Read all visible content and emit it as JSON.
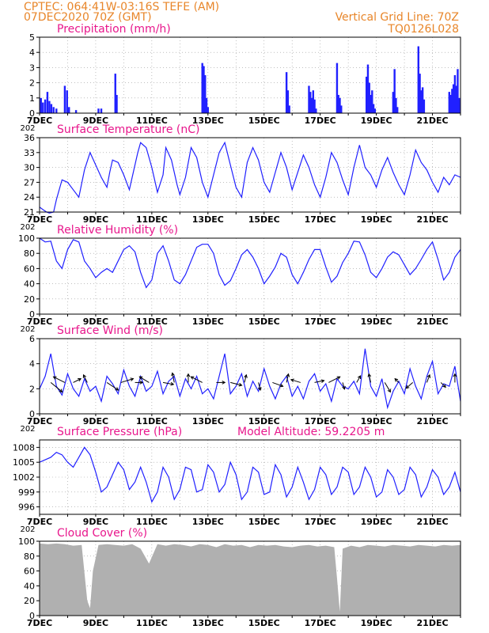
{
  "header": {
    "line1": "CPTEC:   064:41W-03:16S   TEFE (AM)",
    "line2_left": "07DEC2020 70Z (GMT)",
    "line2_right": "Vertical Grid Line: 70Z",
    "line3_right": "TQ0126L028"
  },
  "colors": {
    "header": "#e8862a",
    "panel_title": "#e8178c",
    "series": "#2020ff",
    "cloud": "#b0b0b0",
    "wind_arrow": "#000000"
  },
  "x_labels": [
    "7DEC",
    "9DEC",
    "11DEC",
    "13DEC",
    "15DEC",
    "17DEC",
    "19DEC",
    "21DEC"
  ],
  "x_cut_label": "202",
  "chart_data": [
    {
      "id": "precip",
      "type": "bar",
      "title": "Precipitation (mm/h)",
      "x_unit": "day",
      "xlim": [
        7,
        22
      ],
      "ylim": [
        0,
        5
      ],
      "yticks": [
        0,
        1,
        2,
        3,
        4,
        5
      ],
      "grid": true,
      "x": [
        7.05,
        7.12,
        7.2,
        7.28,
        7.35,
        7.42,
        7.5,
        7.6,
        7.9,
        7.98,
        8.05,
        8.3,
        9.1,
        9.2,
        9.7,
        9.75,
        12.8,
        12.85,
        12.9,
        12.95,
        13.0,
        15.8,
        15.85,
        15.9,
        16.6,
        16.65,
        16.7,
        16.75,
        16.8,
        16.85,
        17.6,
        17.65,
        17.7,
        17.75,
        18.65,
        18.7,
        18.75,
        18.8,
        18.85,
        18.9,
        18.95,
        19.6,
        19.65,
        19.7,
        19.75,
        20.5,
        20.55,
        20.6,
        20.65,
        20.7,
        21.6,
        21.65,
        21.7,
        21.75,
        21.8,
        21.85,
        21.9,
        21.95
      ],
      "values": [
        1.0,
        0.7,
        0.9,
        1.4,
        0.8,
        0.6,
        0.4,
        0.3,
        1.8,
        1.5,
        0.4,
        0.2,
        0.3,
        0.3,
        2.6,
        1.2,
        3.3,
        3.1,
        2.5,
        1.0,
        0.4,
        2.7,
        1.5,
        0.5,
        1.8,
        1.4,
        1.0,
        1.5,
        0.9,
        0.3,
        3.3,
        1.2,
        1.0,
        0.5,
        2.4,
        3.2,
        2.0,
        1.2,
        1.5,
        0.6,
        0.3,
        1.4,
        2.9,
        1.0,
        0.4,
        4.4,
        2.6,
        1.5,
        1.7,
        0.9,
        1.4,
        1.2,
        1.6,
        1.9,
        2.5,
        1.8,
        2.9,
        1.0
      ]
    },
    {
      "id": "temp",
      "type": "line",
      "title": "Surface Temperature (nC)",
      "x_unit": "day",
      "xlim": [
        7,
        22
      ],
      "ylim": [
        21,
        36
      ],
      "yticks": [
        21,
        24,
        27,
        30,
        33,
        36
      ],
      "grid": true,
      "x": [
        7.0,
        7.12,
        7.25,
        7.35,
        7.5,
        7.6,
        7.8,
        8.0,
        8.2,
        8.4,
        8.6,
        8.8,
        9.0,
        9.2,
        9.4,
        9.5,
        9.6,
        9.8,
        10.0,
        10.2,
        10.5,
        10.6,
        10.8,
        11.0,
        11.2,
        11.4,
        11.5,
        11.7,
        11.9,
        12.0,
        12.2,
        12.4,
        12.6,
        12.8,
        13.0,
        13.2,
        13.4,
        13.6,
        13.8,
        14.0,
        14.2,
        14.4,
        14.6,
        14.8,
        15.0,
        15.2,
        15.4,
        15.6,
        15.8,
        16.0,
        16.2,
        16.4,
        16.6,
        16.8,
        17.0,
        17.2,
        17.4,
        17.6,
        17.8,
        18.0,
        18.2,
        18.4,
        18.6,
        18.8,
        19.0,
        19.2,
        19.4,
        19.6,
        19.8,
        20.0,
        20.2,
        20.4,
        20.6,
        20.8,
        21.0,
        21.2,
        21.4,
        21.6,
        21.8,
        22.0
      ],
      "values": [
        22.0,
        21.5,
        21.0,
        20.8,
        21.0,
        23.5,
        27.5,
        27.0,
        25.5,
        24.0,
        29.5,
        33.0,
        30.5,
        28.0,
        26.0,
        29.0,
        31.5,
        31.0,
        28.5,
        25.5,
        33.0,
        35.0,
        34.0,
        30.0,
        25.0,
        28.5,
        34.0,
        31.5,
        26.5,
        24.5,
        28.0,
        34.0,
        32.0,
        27.0,
        24.0,
        28.5,
        33.0,
        35.0,
        30.5,
        26.0,
        24.0,
        31.0,
        34.0,
        31.5,
        27.0,
        25.0,
        29.0,
        33.0,
        30.0,
        25.5,
        29.0,
        32.5,
        30.0,
        26.5,
        24.0,
        28.0,
        33.0,
        31.0,
        27.5,
        24.5,
        30.0,
        34.5,
        30.0,
        28.5,
        26.0,
        29.5,
        32.0,
        29.0,
        26.5,
        24.5,
        28.5,
        33.5,
        31.0,
        29.5,
        27.0,
        25.0,
        28.0,
        26.5,
        28.5,
        28.0
      ]
    },
    {
      "id": "rh",
      "type": "line",
      "title": "Relative Humidity (%)",
      "x_unit": "day",
      "xlim": [
        7,
        22
      ],
      "ylim": [
        0,
        100
      ],
      "yticks": [
        0,
        20,
        40,
        60,
        80,
        100
      ],
      "grid": true,
      "x": [
        7.0,
        7.2,
        7.4,
        7.6,
        7.8,
        8.0,
        8.2,
        8.4,
        8.6,
        8.8,
        9.0,
        9.2,
        9.4,
        9.6,
        9.8,
        10.0,
        10.2,
        10.4,
        10.6,
        10.8,
        11.0,
        11.2,
        11.4,
        11.6,
        11.8,
        12.0,
        12.2,
        12.4,
        12.6,
        12.8,
        13.0,
        13.2,
        13.4,
        13.6,
        13.8,
        14.0,
        14.2,
        14.4,
        14.6,
        14.8,
        15.0,
        15.2,
        15.4,
        15.6,
        15.8,
        16.0,
        16.2,
        16.4,
        16.6,
        16.8,
        17.0,
        17.2,
        17.4,
        17.6,
        17.8,
        18.0,
        18.2,
        18.4,
        18.6,
        18.8,
        19.0,
        19.2,
        19.4,
        19.6,
        19.8,
        20.0,
        20.2,
        20.4,
        20.6,
        20.8,
        21.0,
        21.2,
        21.4,
        21.6,
        21.8,
        22.0
      ],
      "values": [
        100,
        95,
        96,
        70,
        60,
        85,
        98,
        95,
        70,
        60,
        48,
        55,
        60,
        55,
        70,
        85,
        90,
        82,
        55,
        35,
        45,
        80,
        90,
        70,
        45,
        40,
        52,
        70,
        88,
        92,
        92,
        80,
        52,
        38,
        44,
        60,
        78,
        85,
        75,
        60,
        40,
        50,
        62,
        80,
        75,
        52,
        40,
        55,
        72,
        85,
        85,
        62,
        42,
        50,
        68,
        80,
        96,
        95,
        78,
        55,
        48,
        60,
        75,
        82,
        78,
        65,
        52,
        60,
        72,
        85,
        95,
        72,
        45,
        55,
        75,
        85
      ]
    },
    {
      "id": "wind",
      "type": "line",
      "title": "Surface Wind (m/s)",
      "x_unit": "day",
      "xlim": [
        7,
        22
      ],
      "ylim": [
        0,
        6
      ],
      "yticks": [
        0,
        2,
        4,
        6
      ],
      "grid": true,
      "x": [
        7.0,
        7.2,
        7.4,
        7.6,
        7.8,
        8.0,
        8.2,
        8.4,
        8.6,
        8.8,
        9.0,
        9.2,
        9.4,
        9.6,
        9.8,
        10.0,
        10.2,
        10.4,
        10.6,
        10.8,
        11.0,
        11.2,
        11.4,
        11.6,
        11.8,
        12.0,
        12.2,
        12.4,
        12.6,
        12.8,
        13.0,
        13.2,
        13.4,
        13.6,
        13.8,
        14.0,
        14.2,
        14.4,
        14.6,
        14.8,
        15.0,
        15.2,
        15.4,
        15.6,
        15.8,
        16.0,
        16.2,
        16.4,
        16.6,
        16.8,
        17.0,
        17.2,
        17.4,
        17.6,
        17.8,
        18.0,
        18.2,
        18.4,
        18.6,
        18.8,
        19.0,
        19.2,
        19.4,
        19.6,
        19.8,
        20.0,
        20.2,
        20.4,
        20.6,
        20.8,
        21.0,
        21.2,
        21.4,
        21.6,
        21.8,
        22.0
      ],
      "values": [
        2.0,
        3.0,
        4.8,
        2.2,
        1.5,
        3.2,
        2.0,
        1.4,
        2.8,
        1.8,
        2.2,
        1.0,
        3.0,
        2.4,
        1.6,
        3.5,
        2.2,
        1.4,
        3.0,
        1.8,
        2.2,
        3.4,
        1.6,
        2.6,
        3.0,
        1.4,
        2.8,
        2.0,
        3.0,
        1.6,
        2.0,
        1.2,
        3.0,
        4.8,
        1.6,
        2.2,
        3.2,
        1.4,
        2.6,
        1.8,
        3.6,
        2.2,
        1.2,
        2.4,
        3.0,
        1.4,
        2.2,
        1.2,
        2.6,
        3.2,
        1.8,
        2.4,
        1.0,
        2.8,
        2.2,
        2.0,
        2.6,
        1.6,
        5.2,
        2.2,
        1.4,
        2.8,
        0.5,
        1.8,
        2.6,
        1.6,
        3.6,
        2.2,
        1.2,
        3.0,
        4.2,
        1.6,
        2.4,
        2.2,
        3.8,
        1.0
      ],
      "arrows": {
        "x": [
          7.4,
          7.9,
          8.2,
          8.7,
          9.4,
          9.9,
          10.4,
          10.9,
          11.4,
          11.8,
          12.3,
          12.8,
          13.3,
          13.8,
          14.3,
          14.8,
          15.3,
          15.8,
          16.3,
          16.8,
          17.3,
          17.8,
          18.3,
          18.8,
          19.3,
          19.8,
          20.3,
          20.8,
          21.3,
          21.8
        ],
        "u": [
          1.2,
          -1.2,
          0.8,
          -0.4,
          1.2,
          1.3,
          0.8,
          -1.0,
          1.1,
          -0.2,
          0.0,
          -1.2,
          0.9,
          1.2,
          0.2,
          0.2,
          1.1,
          0.2,
          -1.0,
          1.0,
          1.2,
          0.2,
          0.4,
          -0.2,
          0.6,
          -0.4,
          -0.7,
          0.3,
          0.5,
          0.0
        ],
        "v": [
          -1.0,
          0.6,
          0.4,
          0.8,
          -0.8,
          0.4,
          0.0,
          0.6,
          -0.2,
          1.0,
          0.9,
          0.6,
          0.0,
          -0.3,
          0.8,
          -0.8,
          -0.4,
          0.9,
          0.3,
          0.2,
          0.6,
          -0.7,
          0.7,
          0.9,
          -1.0,
          0.4,
          -0.6,
          0.8,
          -0.5,
          0.9
        ]
      }
    },
    {
      "id": "pres",
      "type": "line",
      "title": "Surface Pressure (hPa)",
      "annotation": "Model Altitude: 59.2205  m",
      "x_unit": "day",
      "xlim": [
        7,
        22
      ],
      "ylim": [
        994.5,
        1009.5
      ],
      "yticks": [
        996,
        999,
        1002,
        1005,
        1008
      ],
      "grid": true,
      "x": [
        7.0,
        7.2,
        7.4,
        7.6,
        7.8,
        8.0,
        8.2,
        8.4,
        8.6,
        8.8,
        9.0,
        9.2,
        9.4,
        9.6,
        9.8,
        10.0,
        10.2,
        10.4,
        10.6,
        10.8,
        11.0,
        11.2,
        11.4,
        11.6,
        11.8,
        12.0,
        12.2,
        12.4,
        12.6,
        12.8,
        13.0,
        13.2,
        13.4,
        13.6,
        13.8,
        14.0,
        14.2,
        14.4,
        14.6,
        14.8,
        15.0,
        15.2,
        15.4,
        15.6,
        15.8,
        16.0,
        16.2,
        16.4,
        16.6,
        16.8,
        17.0,
        17.2,
        17.4,
        17.6,
        17.8,
        18.0,
        18.2,
        18.4,
        18.6,
        18.8,
        19.0,
        19.2,
        19.4,
        19.6,
        19.8,
        20.0,
        20.2,
        20.4,
        20.6,
        20.8,
        21.0,
        21.2,
        21.4,
        21.6,
        21.8,
        22.0
      ],
      "values": [
        1005.0,
        1005.5,
        1006.0,
        1007.0,
        1006.5,
        1005.0,
        1004.0,
        1006.0,
        1008.0,
        1006.5,
        1003.0,
        999.0,
        1000.0,
        1002.5,
        1005.0,
        1003.5,
        999.5,
        1001.0,
        1004.0,
        1001.0,
        997.0,
        999.0,
        1004.0,
        1002.0,
        997.5,
        999.5,
        1004.0,
        1003.5,
        999.0,
        999.5,
        1004.5,
        1003.0,
        999.0,
        1000.5,
        1005.0,
        1002.5,
        997.5,
        999.0,
        1004.0,
        1003.0,
        998.5,
        999.0,
        1004.5,
        1002.5,
        998.0,
        1000.0,
        1004.0,
        1001.0,
        997.5,
        999.5,
        1004.0,
        1002.5,
        998.5,
        1000.0,
        1004.0,
        1003.0,
        998.5,
        1000.0,
        1004.0,
        1002.0,
        998.0,
        999.0,
        1003.5,
        1002.0,
        998.5,
        999.5,
        1004.0,
        1002.5,
        998.0,
        1000.0,
        1003.5,
        1002.0,
        998.5,
        1000.0,
        1003.0,
        999.0
      ]
    },
    {
      "id": "cloud",
      "type": "area",
      "title": "Cloud Cover (%)",
      "x_unit": "day",
      "xlim": [
        7,
        22
      ],
      "ylim": [
        0,
        100
      ],
      "yticks": [
        0,
        20,
        40,
        60,
        80,
        100
      ],
      "grid": true,
      "x": [
        7.0,
        7.3,
        7.6,
        7.9,
        8.2,
        8.5,
        8.7,
        8.8,
        8.9,
        9.1,
        9.4,
        9.7,
        10.0,
        10.3,
        10.6,
        10.9,
        11.2,
        11.5,
        11.8,
        12.1,
        12.4,
        12.7,
        13.0,
        13.3,
        13.6,
        13.9,
        14.2,
        14.5,
        14.8,
        15.1,
        15.4,
        15.7,
        16.0,
        16.3,
        16.6,
        16.9,
        17.2,
        17.5,
        17.6,
        17.7,
        17.8,
        18.1,
        18.4,
        18.7,
        19.0,
        19.3,
        19.6,
        19.9,
        20.2,
        20.5,
        20.8,
        21.1,
        21.4,
        21.7,
        22.0
      ],
      "values": [
        97,
        96,
        97,
        96,
        94,
        95,
        20,
        10,
        60,
        95,
        96,
        95,
        94,
        96,
        90,
        70,
        96,
        94,
        96,
        95,
        93,
        96,
        95,
        92,
        96,
        94,
        95,
        92,
        95,
        94,
        95,
        93,
        92,
        94,
        95,
        93,
        94,
        92,
        50,
        5,
        90,
        94,
        92,
        95,
        94,
        93,
        95,
        94,
        93,
        95,
        94,
        93,
        95,
        94,
        95
      ]
    }
  ]
}
